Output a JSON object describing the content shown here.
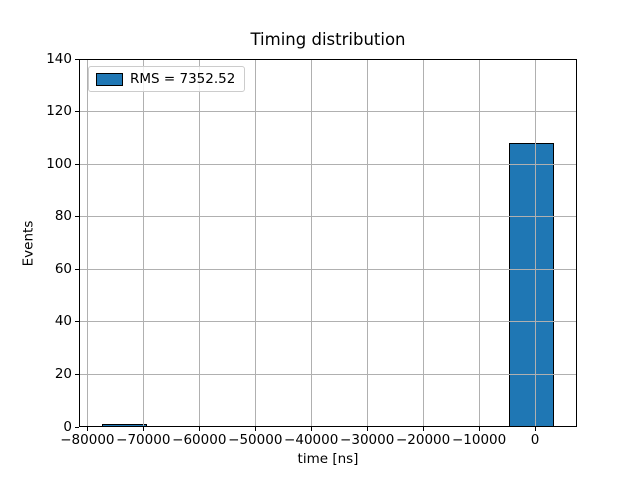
{
  "figure": {
    "title": "Timing distribution",
    "background_color": "#ffffff"
  },
  "legend": {
    "label": "RMS = 7352.52"
  },
  "chart_data": {
    "type": "bar",
    "subtype": "histogram",
    "title": "Timing distribution",
    "xlabel": "time [ns]",
    "ylabel": "Events",
    "xlim": [
      -81500,
      7500
    ],
    "ylim": [
      0,
      140
    ],
    "bin_edges": [
      -77400,
      -69314,
      -61228,
      -53142,
      -45056,
      -36970,
      -28884,
      -20798,
      -12712,
      -4626,
      3460
    ],
    "counts": [
      1,
      0,
      0,
      0,
      0,
      0,
      0,
      0,
      0,
      108
    ],
    "xtick_values": [
      -80000,
      -70000,
      -60000,
      -50000,
      -40000,
      -30000,
      -20000,
      -10000,
      0
    ],
    "xtick_labels": [
      "−80000",
      "−70000",
      "−60000",
      "−50000",
      "−40000",
      "−30000",
      "−20000",
      "−10000",
      "0"
    ],
    "ytick_values": [
      0,
      20,
      40,
      60,
      80,
      100,
      120,
      140
    ],
    "ytick_labels": [
      "0",
      "20",
      "40",
      "60",
      "80",
      "100",
      "120",
      "140"
    ],
    "grid": true,
    "grid_on_top_of_bars": true,
    "legend_entries": [
      "RMS = 7352.52"
    ],
    "legend_position": "upper left",
    "colors": {
      "bar_fill": "#1f77b4",
      "bar_edge": "#000000",
      "grid": "#b0b0b0",
      "axis": "#000000",
      "legend_border": "#cccccc"
    }
  }
}
